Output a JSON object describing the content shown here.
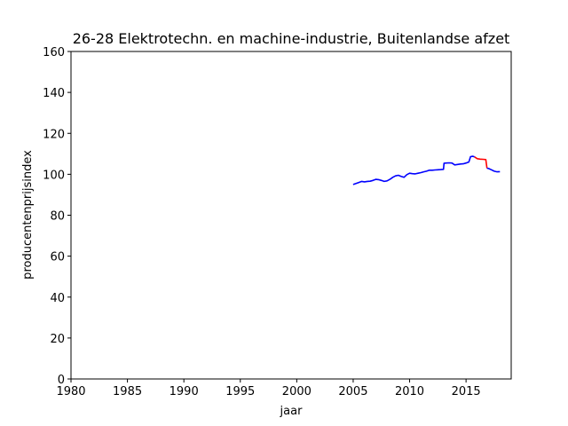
{
  "chart_data": {
    "type": "line",
    "title": "26-28 Elektrotechn. en machine-industrie, Buitenlandse afzet",
    "xlabel": "jaar",
    "ylabel": "producentenprijsindex",
    "xlim": [
      1980,
      2019
    ],
    "ylim": [
      0,
      160
    ],
    "xticks": [
      1980,
      1985,
      1990,
      1995,
      2000,
      2005,
      2010,
      2015
    ],
    "yticks": [
      0,
      20,
      40,
      60,
      80,
      100,
      120,
      140,
      160
    ],
    "grid": false,
    "legend": "none",
    "series": [
      {
        "color": "#0000ff",
        "x": [
          2005.0,
          2005.25,
          2005.5,
          2005.75,
          2006.0,
          2006.25,
          2006.5,
          2006.75,
          2007.0,
          2007.25,
          2007.5,
          2007.75,
          2008.0,
          2008.25,
          2008.5,
          2008.75,
          2009.0,
          2009.25,
          2009.5,
          2009.75,
          2010.0,
          2010.25,
          2010.5,
          2010.75,
          2011.0,
          2011.25,
          2011.5,
          2011.75,
          2012.0,
          2012.25,
          2012.5,
          2012.75,
          2013.0,
          2013.05,
          2013.25,
          2013.5,
          2013.75,
          2014.0,
          2014.25,
          2014.5,
          2014.75,
          2015.0,
          2015.25,
          2015.4,
          2015.6,
          2015.75
        ],
        "y": [
          95.0,
          95.5,
          96.0,
          96.5,
          96.3,
          96.5,
          96.6,
          97.0,
          97.5,
          97.4,
          97.0,
          96.5,
          96.8,
          97.5,
          98.5,
          99.2,
          99.5,
          99.0,
          98.5,
          99.8,
          100.5,
          100.3,
          100.2,
          100.5,
          100.8,
          101.2,
          101.5,
          102.0,
          102.0,
          102.1,
          102.2,
          102.3,
          102.4,
          105.4,
          105.5,
          105.6,
          105.5,
          104.6,
          104.8,
          105.0,
          105.1,
          105.5,
          106.0,
          108.6,
          108.8,
          108.5
        ]
      },
      {
        "color": "#ff0000",
        "x": [
          2015.75,
          2016.0,
          2016.25,
          2016.5,
          2016.75,
          2016.85
        ],
        "y": [
          108.5,
          107.6,
          107.4,
          107.3,
          107.2,
          103.0
        ]
      },
      {
        "color": "#0000ff",
        "x": [
          2016.85,
          2017.0,
          2017.25,
          2017.5,
          2017.75,
          2018.0
        ],
        "y": [
          103.0,
          102.8,
          102.2,
          101.5,
          101.2,
          101.3
        ]
      }
    ]
  }
}
